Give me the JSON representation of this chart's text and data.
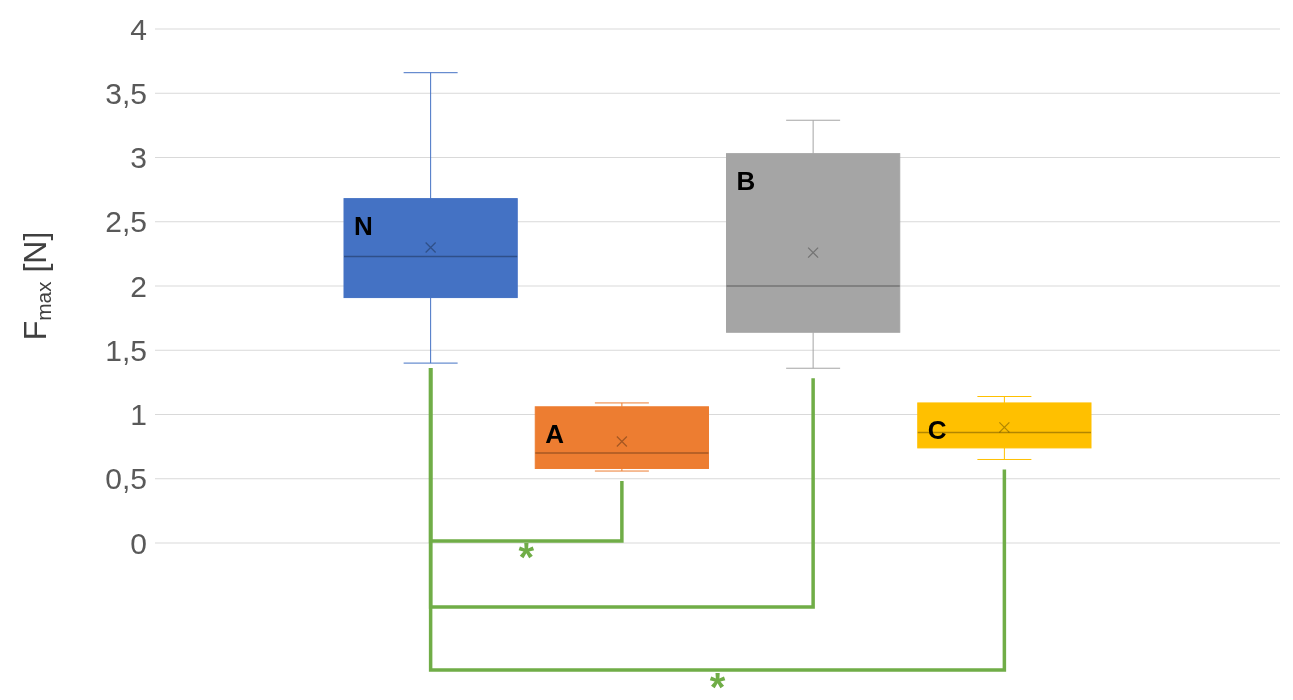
{
  "chart_data": {
    "type": "box",
    "ylabel": "F$_{max}$ [N]",
    "categories": [
      null
    ],
    "series": [
      {
        "name": "N",
        "color": "#4472c4",
        "boxes": [
          {
            "low": 1.4,
            "q1": 1.91,
            "median": 2.23,
            "q3": 2.68,
            "high": 3.66,
            "mean": 2.3
          }
        ]
      },
      {
        "name": "A",
        "color": "#ed7d31",
        "boxes": [
          {
            "low": 0.56,
            "q1": 0.58,
            "median": 0.7,
            "q3": 1.06,
            "high": 1.09,
            "mean": 0.79
          }
        ]
      },
      {
        "name": "B",
        "color": "#a5a5a5",
        "boxes": [
          {
            "low": 1.36,
            "q1": 1.64,
            "median": 2.0,
            "q3": 3.03,
            "high": 3.29,
            "mean": 2.26
          }
        ]
      },
      {
        "name": "C",
        "color": "#ffc000",
        "boxes": [
          {
            "low": 0.65,
            "q1": 0.74,
            "median": 0.86,
            "q3": 1.09,
            "high": 1.14,
            "mean": 0.9
          }
        ]
      }
    ],
    "ylim": [
      0,
      4
    ],
    "yticks": [
      0,
      {
        "value": 0.5,
        "label": "0,5"
      },
      1,
      {
        "value": 1.5,
        "label": "1,5"
      },
      2,
      {
        "value": 2.5,
        "label": "2,5"
      },
      3,
      {
        "value": 3.5,
        "label": "3,5"
      },
      4
    ],
    "grid": "y",
    "tick_labels": "y",
    "annotations": [
      "*",
      "*"
    ]
  }
}
